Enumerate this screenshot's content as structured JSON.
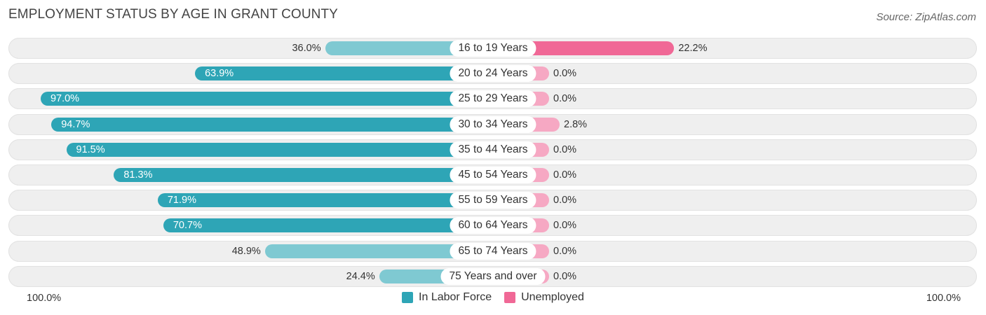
{
  "title": "EMPLOYMENT STATUS BY AGE IN GRANT COUNTY",
  "source": "Source: ZipAtlas.com",
  "colors": {
    "labor_force": "#2ea5b6",
    "labor_force_light": "#7fc9d2",
    "unemployed": "#f06896",
    "unemployed_light": "#f6a8c3",
    "row_background": "#efefef"
  },
  "chart_data": {
    "type": "bar",
    "orientation": "horizontal-diverging",
    "title": "EMPLOYMENT STATUS BY AGE IN GRANT COUNTY",
    "categories": [
      "16 to 19 Years",
      "20 to 24 Years",
      "25 to 29 Years",
      "30 to 34 Years",
      "35 to 44 Years",
      "45 to 54 Years",
      "55 to 59 Years",
      "60 to 64 Years",
      "65 to 74 Years",
      "75 Years and over"
    ],
    "series": [
      {
        "name": "In Labor Force",
        "values": [
          36.0,
          63.9,
          97.0,
          94.7,
          91.5,
          81.3,
          71.9,
          70.7,
          48.9,
          24.4
        ],
        "labels": [
          "36.0%",
          "63.9%",
          "97.0%",
          "94.7%",
          "91.5%",
          "81.3%",
          "71.9%",
          "70.7%",
          "48.9%",
          "24.4%"
        ]
      },
      {
        "name": "Unemployed",
        "values": [
          22.2,
          0.0,
          0.0,
          2.8,
          0.0,
          0.0,
          0.0,
          0.0,
          0.0,
          0.0
        ],
        "labels": [
          "22.2%",
          "0.0%",
          "0.0%",
          "2.8%",
          "0.0%",
          "0.0%",
          "0.0%",
          "0.0%",
          "0.0%",
          "0.0%"
        ]
      }
    ],
    "axis": {
      "left_label": "100.0%",
      "right_label": "100.0%",
      "range": [
        0,
        100
      ]
    },
    "legend": [
      "In Labor Force",
      "Unemployed"
    ],
    "legend_position": "bottom-center"
  }
}
